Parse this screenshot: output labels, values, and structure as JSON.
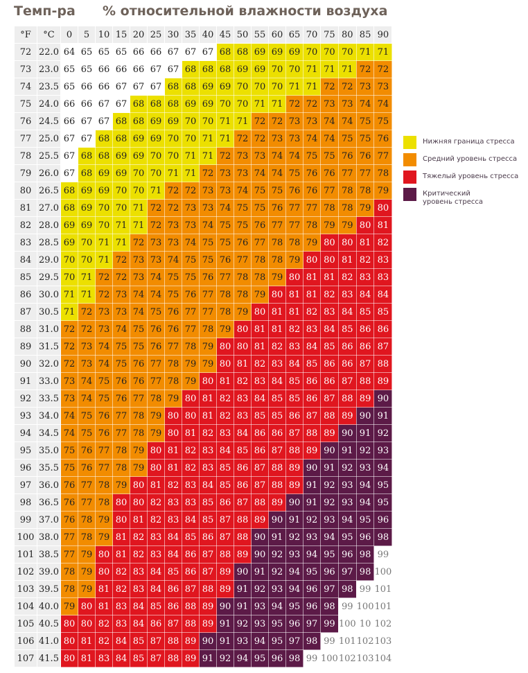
{
  "title_temp": "Темп-ра",
  "title_humidity": "% относительной влажности воздуха",
  "header": {
    "f": "°F",
    "c": "°C"
  },
  "humidity": [
    0,
    5,
    10,
    15,
    20,
    25,
    30,
    35,
    40,
    45,
    50,
    55,
    60,
    65,
    70,
    75,
    80,
    85,
    90
  ],
  "colors": {
    "low": "#ece000",
    "mid": "#f28c00",
    "high": "#e0161f",
    "crit": "#5c1a47"
  },
  "legend": [
    {
      "level": "low",
      "label": "Нижняя граница стресса"
    },
    {
      "level": "mid",
      "label": "Средний уровень стресса"
    },
    {
      "level": "high",
      "label": "Тяжелый уровень стресса"
    },
    {
      "level": "crit",
      "label": "Критический уровень стресса"
    }
  ],
  "overrides": [
    {
      "f": 105,
      "humidity": 75,
      "level": "crit"
    },
    {
      "f": 105,
      "humidity": 85,
      "level": "none"
    }
  ],
  "rows": [
    {
      "f": "72",
      "c": "22.0",
      "v": [
        64,
        65,
        65,
        65,
        66,
        66,
        67,
        67,
        67,
        68,
        68,
        69,
        69,
        69,
        70,
        70,
        70,
        71,
        71
      ]
    },
    {
      "f": "73",
      "c": "23.0",
      "v": [
        65,
        65,
        66,
        66,
        66,
        67,
        67,
        68,
        68,
        68,
        69,
        69,
        70,
        70,
        71,
        71,
        71,
        72,
        72
      ]
    },
    {
      "f": "74",
      "c": "23.5",
      "v": [
        65,
        66,
        66,
        67,
        67,
        67,
        68,
        68,
        69,
        69,
        70,
        70,
        70,
        71,
        71,
        72,
        72,
        73,
        73
      ]
    },
    {
      "f": "75",
      "c": "24.0",
      "v": [
        66,
        66,
        67,
        67,
        68,
        68,
        68,
        69,
        69,
        70,
        70,
        71,
        71,
        72,
        72,
        73,
        73,
        74,
        74
      ]
    },
    {
      "f": "76",
      "c": "24.5",
      "v": [
        66,
        67,
        67,
        68,
        68,
        69,
        69,
        70,
        70,
        71,
        71,
        72,
        72,
        73,
        73,
        74,
        74,
        75,
        75
      ]
    },
    {
      "f": "77",
      "c": "25.0",
      "v": [
        67,
        67,
        68,
        68,
        69,
        69,
        70,
        70,
        71,
        71,
        72,
        72,
        73,
        73,
        74,
        74,
        75,
        75,
        76
      ]
    },
    {
      "f": "78",
      "c": "25.5",
      "v": [
        67,
        68,
        68,
        69,
        69,
        70,
        70,
        71,
        71,
        72,
        73,
        73,
        74,
        74,
        75,
        75,
        76,
        76,
        77
      ]
    },
    {
      "f": "79",
      "c": "26.0",
      "v": [
        67,
        68,
        69,
        69,
        70,
        70,
        71,
        71,
        72,
        73,
        73,
        74,
        74,
        75,
        76,
        76,
        77,
        77,
        78
      ]
    },
    {
      "f": "80",
      "c": "26.5",
      "v": [
        68,
        69,
        69,
        70,
        70,
        71,
        72,
        72,
        73,
        73,
        74,
        75,
        75,
        76,
        76,
        77,
        78,
        78,
        79
      ]
    },
    {
      "f": "81",
      "c": "27.0",
      "v": [
        68,
        69,
        70,
        70,
        71,
        72,
        72,
        73,
        73,
        74,
        75,
        75,
        76,
        77,
        77,
        78,
        78,
        79,
        80
      ]
    },
    {
      "f": "82",
      "c": "28.0",
      "v": [
        69,
        69,
        70,
        71,
        71,
        72,
        73,
        73,
        74,
        75,
        75,
        76,
        77,
        77,
        78,
        79,
        79,
        80,
        81
      ]
    },
    {
      "f": "83",
      "c": "28.5",
      "v": [
        69,
        70,
        71,
        71,
        72,
        73,
        73,
        74,
        75,
        75,
        76,
        77,
        78,
        78,
        79,
        80,
        80,
        81,
        82
      ]
    },
    {
      "f": "84",
      "c": "29.0",
      "v": [
        70,
        70,
        71,
        72,
        73,
        73,
        74,
        75,
        75,
        76,
        77,
        78,
        78,
        79,
        80,
        80,
        81,
        82,
        83
      ]
    },
    {
      "f": "85",
      "c": "29.5",
      "v": [
        70,
        71,
        72,
        72,
        73,
        74,
        75,
        75,
        76,
        77,
        78,
        78,
        79,
        80,
        81,
        81,
        82,
        83,
        83
      ]
    },
    {
      "f": "86",
      "c": "30.0",
      "v": [
        71,
        71,
        72,
        73,
        74,
        74,
        75,
        76,
        77,
        78,
        78,
        79,
        80,
        81,
        81,
        82,
        83,
        84,
        84
      ]
    },
    {
      "f": "87",
      "c": "30.5",
      "v": [
        71,
        72,
        73,
        73,
        74,
        75,
        76,
        77,
        77,
        78,
        79,
        80,
        81,
        81,
        82,
        83,
        84,
        85,
        85
      ]
    },
    {
      "f": "88",
      "c": "31.0",
      "v": [
        72,
        72,
        73,
        74,
        75,
        76,
        76,
        77,
        78,
        79,
        80,
        81,
        81,
        82,
        83,
        84,
        85,
        86,
        86
      ]
    },
    {
      "f": "89",
      "c": "31.5",
      "v": [
        72,
        73,
        74,
        75,
        75,
        76,
        77,
        78,
        79,
        80,
        80,
        81,
        82,
        83,
        84,
        85,
        86,
        86,
        87
      ]
    },
    {
      "f": "90",
      "c": "32.0",
      "v": [
        72,
        73,
        74,
        75,
        76,
        77,
        78,
        79,
        79,
        80,
        81,
        82,
        83,
        84,
        85,
        86,
        86,
        87,
        88
      ]
    },
    {
      "f": "91",
      "c": "33.0",
      "v": [
        73,
        74,
        75,
        76,
        76,
        77,
        78,
        79,
        80,
        81,
        82,
        83,
        84,
        85,
        86,
        86,
        87,
        88,
        89
      ]
    },
    {
      "f": "92",
      "c": "33.5",
      "v": [
        73,
        74,
        75,
        76,
        77,
        78,
        79,
        80,
        81,
        82,
        83,
        84,
        85,
        85,
        86,
        87,
        88,
        89,
        90
      ]
    },
    {
      "f": "93",
      "c": "34.0",
      "v": [
        74,
        75,
        76,
        77,
        78,
        79,
        80,
        80,
        81,
        82,
        83,
        85,
        85,
        86,
        87,
        88,
        89,
        90,
        91
      ]
    },
    {
      "f": "94",
      "c": "34.5",
      "v": [
        74,
        75,
        76,
        77,
        78,
        79,
        80,
        81,
        82,
        83,
        84,
        86,
        86,
        87,
        88,
        89,
        90,
        91,
        92
      ]
    },
    {
      "f": "95",
      "c": "35.0",
      "v": [
        75,
        76,
        77,
        78,
        79,
        80,
        81,
        82,
        83,
        84,
        85,
        86,
        87,
        88,
        89,
        90,
        91,
        92,
        93
      ]
    },
    {
      "f": "96",
      "c": "35.5",
      "v": [
        75,
        76,
        77,
        78,
        79,
        80,
        81,
        82,
        83,
        85,
        86,
        87,
        88,
        89,
        90,
        91,
        92,
        93,
        94
      ]
    },
    {
      "f": "97",
      "c": "36.0",
      "v": [
        76,
        77,
        78,
        79,
        80,
        81,
        82,
        83,
        84,
        85,
        86,
        87,
        88,
        89,
        91,
        92,
        93,
        94,
        95
      ]
    },
    {
      "f": "98",
      "c": "36.5",
      "v": [
        76,
        77,
        78,
        80,
        80,
        82,
        83,
        83,
        85,
        86,
        87,
        88,
        89,
        90,
        91,
        92,
        93,
        94,
        95
      ]
    },
    {
      "f": "99",
      "c": "37.0",
      "v": [
        76,
        78,
        79,
        80,
        81,
        82,
        83,
        84,
        85,
        87,
        88,
        89,
        90,
        91,
        92,
        93,
        94,
        95,
        96
      ]
    },
    {
      "f": "100",
      "c": "38.0",
      "v": [
        77,
        78,
        79,
        81,
        82,
        83,
        84,
        85,
        86,
        87,
        88,
        90,
        91,
        92,
        93,
        94,
        95,
        96,
        98
      ]
    },
    {
      "f": "101",
      "c": "38.5",
      "v": [
        77,
        79,
        80,
        81,
        82,
        83,
        84,
        86,
        87,
        88,
        89,
        90,
        92,
        93,
        94,
        95,
        96,
        98,
        99
      ]
    },
    {
      "f": "102",
      "c": "39.0",
      "v": [
        78,
        79,
        80,
        82,
        83,
        84,
        85,
        86,
        87,
        89,
        90,
        91,
        92,
        94,
        95,
        96,
        97,
        98,
        100
      ]
    },
    {
      "f": "103",
      "c": "39.5",
      "v": [
        78,
        79,
        81,
        82,
        83,
        84,
        86,
        87,
        88,
        89,
        91,
        92,
        93,
        94,
        96,
        97,
        98,
        99,
        101
      ]
    },
    {
      "f": "104",
      "c": "40.0",
      "v": [
        79,
        80,
        81,
        83,
        84,
        85,
        86,
        88,
        89,
        90,
        91,
        93,
        94,
        95,
        96,
        98,
        99,
        100,
        101
      ]
    },
    {
      "f": "105",
      "c": "40.5",
      "v": [
        80,
        80,
        82,
        83,
        84,
        86,
        87,
        88,
        89,
        91,
        92,
        93,
        95,
        96,
        97,
        99,
        100,
        10,
        102
      ]
    },
    {
      "f": "106",
      "c": "41.0",
      "v": [
        80,
        81,
        82,
        84,
        85,
        87,
        88,
        89,
        90,
        91,
        93,
        94,
        95,
        97,
        98,
        99,
        101,
        102,
        103
      ]
    },
    {
      "f": "107",
      "c": "41.5",
      "v": [
        80,
        81,
        83,
        84,
        85,
        87,
        88,
        89,
        91,
        92,
        94,
        95,
        96,
        98,
        99,
        100,
        102,
        103,
        104
      ]
    }
  ]
}
